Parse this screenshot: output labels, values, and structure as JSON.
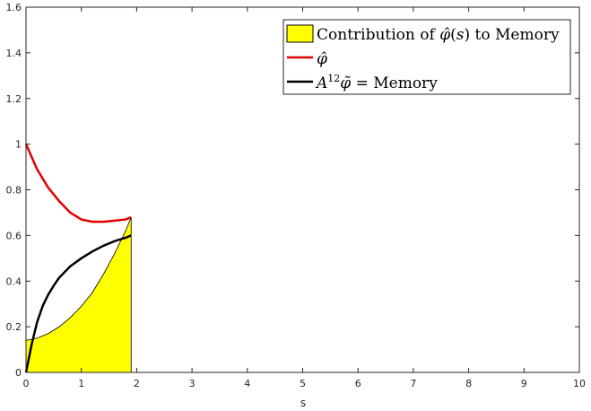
{
  "chart_data": {
    "type": "line",
    "xlabel": "s",
    "ylabel": "",
    "xlim": [
      0,
      10
    ],
    "ylim": [
      0,
      1.6
    ],
    "x_ticks": [
      "0",
      "1",
      "2",
      "3",
      "4",
      "5",
      "6",
      "7",
      "8",
      "9",
      "10"
    ],
    "y_ticks": [
      "0",
      "0.2",
      "0.4",
      "0.6",
      "0.8",
      "1",
      "1.2",
      "1.4",
      "1.6"
    ],
    "grid": false,
    "legend_position": "top-right",
    "legend": [
      {
        "label": "Contribution of φ̂(s) to Memory",
        "color": "#ffff00",
        "kind": "patch"
      },
      {
        "label": "φ̂",
        "color": "#e00000",
        "kind": "line"
      },
      {
        "label": "A¹²φ̃ = Memory",
        "color": "#000000",
        "kind": "line"
      }
    ],
    "series": [
      {
        "label_ref": 1,
        "color": "#e00000",
        "x": [
          0,
          0.2,
          0.4,
          0.6,
          0.8,
          1.0,
          1.2,
          1.4,
          1.6,
          1.8,
          1.9
        ],
        "y": [
          1.0,
          0.89,
          0.81,
          0.75,
          0.7,
          0.67,
          0.66,
          0.66,
          0.665,
          0.67,
          0.68
        ]
      },
      {
        "label_ref": 2,
        "color": "#000000",
        "x": [
          0,
          0.1,
          0.2,
          0.3,
          0.4,
          0.5,
          0.6,
          0.8,
          1.0,
          1.2,
          1.4,
          1.6,
          1.8,
          1.9
        ],
        "y": [
          0.0,
          0.12,
          0.22,
          0.29,
          0.34,
          0.38,
          0.415,
          0.465,
          0.5,
          0.53,
          0.555,
          0.575,
          0.59,
          0.6
        ]
      }
    ],
    "area": {
      "label_ref": 0,
      "color": "#ffff00",
      "x": [
        0,
        0.2,
        0.4,
        0.6,
        0.8,
        1.0,
        1.2,
        1.4,
        1.6,
        1.8,
        1.9
      ],
      "y": [
        0.14,
        0.15,
        0.17,
        0.2,
        0.24,
        0.29,
        0.35,
        0.43,
        0.52,
        0.62,
        0.68
      ]
    }
  }
}
